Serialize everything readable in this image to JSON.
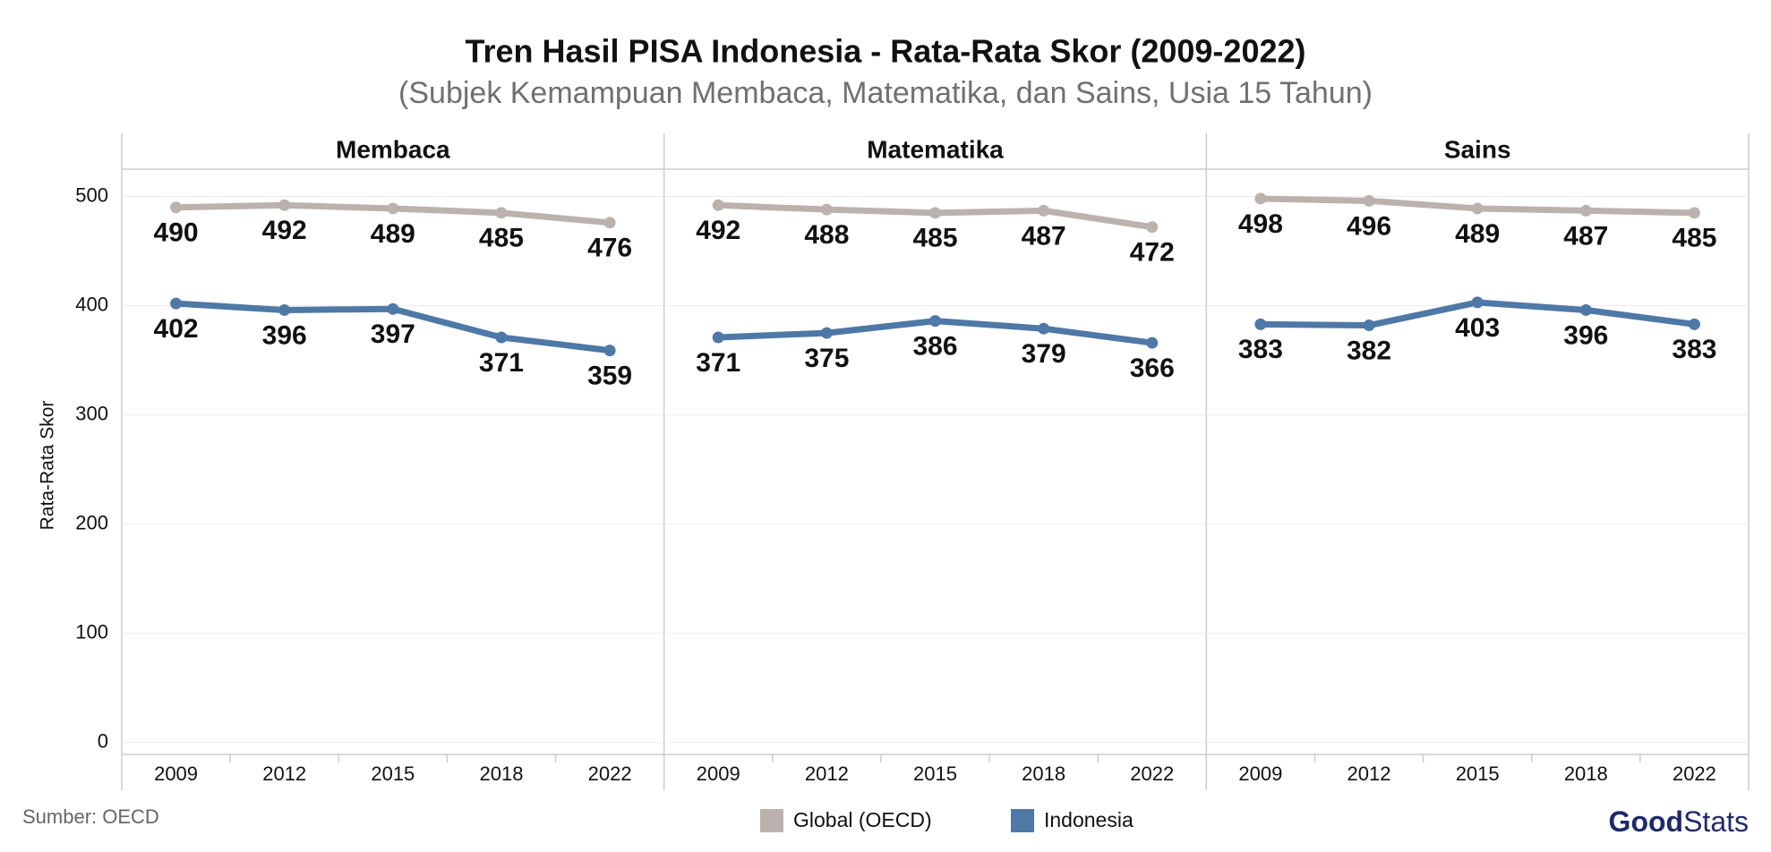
{
  "title": "Tren Hasil PISA Indonesia - Rata-Rata Skor (2009-2022)",
  "subtitle": "(Subjek Kemampuan Membaca, Matematika, dan Sains, Usia 15 Tahun)",
  "y_label": "Rata-Rata Skor",
  "source": "Sumber: OECD",
  "logo": [
    "Good",
    "Stats"
  ],
  "chart_data": [
    {
      "type": "line",
      "title": "Membaca",
      "categories": [
        "2009",
        "2012",
        "2015",
        "2018",
        "2022"
      ],
      "series": [
        {
          "name": "Global (OECD)",
          "color": "#bcb2ad",
          "values": [
            490,
            492,
            489,
            485,
            476
          ]
        },
        {
          "name": "Indonesia",
          "color": "#4e78a6",
          "values": [
            402,
            396,
            397,
            371,
            359
          ]
        }
      ],
      "ylim": [
        -10,
        525
      ],
      "yticks": [
        0,
        100,
        200,
        300,
        400,
        500
      ],
      "grid": true
    },
    {
      "type": "line",
      "title": "Matematika",
      "categories": [
        "2009",
        "2012",
        "2015",
        "2018",
        "2022"
      ],
      "series": [
        {
          "name": "Global (OECD)",
          "color": "#bcb2ad",
          "values": [
            492,
            488,
            485,
            487,
            472
          ]
        },
        {
          "name": "Indonesia",
          "color": "#4e78a6",
          "values": [
            371,
            375,
            386,
            379,
            366
          ]
        }
      ],
      "ylim": [
        -10,
        525
      ],
      "yticks": [
        0,
        100,
        200,
        300,
        400,
        500
      ],
      "grid": true
    },
    {
      "type": "line",
      "title": "Sains",
      "categories": [
        "2009",
        "2012",
        "2015",
        "2018",
        "2022"
      ],
      "series": [
        {
          "name": "Global (OECD)",
          "color": "#bcb2ad",
          "values": [
            498,
            496,
            489,
            487,
            485
          ]
        },
        {
          "name": "Indonesia",
          "color": "#4e78a6",
          "values": [
            383,
            382,
            403,
            396,
            383
          ]
        }
      ],
      "ylim": [
        -10,
        525
      ],
      "yticks": [
        0,
        100,
        200,
        300,
        400,
        500
      ],
      "grid": true
    }
  ]
}
